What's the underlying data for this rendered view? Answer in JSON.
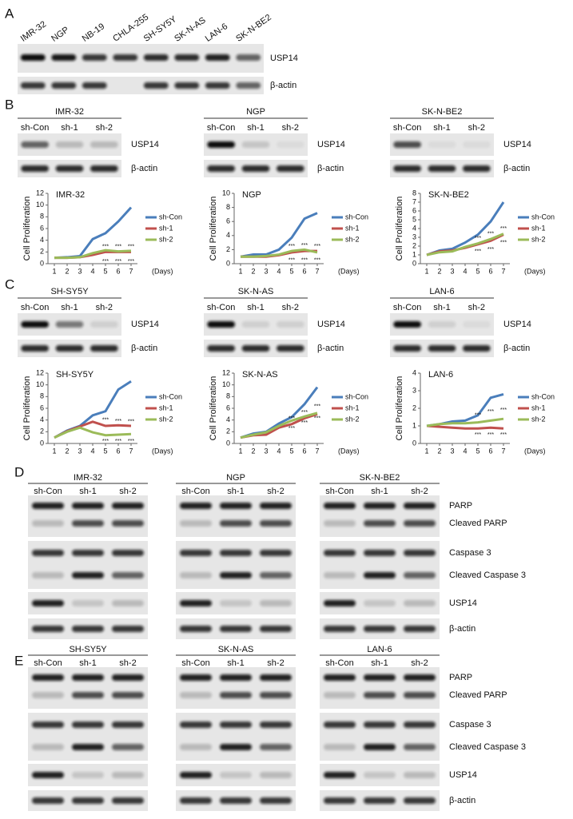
{
  "figure": {
    "panel_labels": [
      "A",
      "B",
      "C",
      "D",
      "E"
    ],
    "panel_a": {
      "lanes": [
        "IMR-32",
        "NGP",
        "NB-19",
        "CHLA-255",
        "SH-SY5Y",
        "SK-N-AS",
        "LAN-6",
        "SK-N-BE2"
      ],
      "rows": [
        "USP14",
        "β-actin"
      ]
    },
    "panel_b": {
      "blots": [
        {
          "title": "IMR-32",
          "lanes": [
            "sh-Con",
            "sh-1",
            "sh-2"
          ],
          "rows": [
            "USP14",
            "β-actin"
          ]
        },
        {
          "title": "NGP",
          "lanes": [
            "sh-Con",
            "sh-1",
            "sh-2"
          ],
          "rows": [
            "USP14",
            "β-actin"
          ]
        },
        {
          "title": "SK-N-BE2",
          "lanes": [
            "sh-Con",
            "sh-1",
            "sh-2"
          ],
          "rows": [
            "USP14",
            "β-actin"
          ]
        }
      ]
    },
    "panel_c": {
      "blots": [
        {
          "title": "SH-SY5Y",
          "lanes": [
            "sh-Con",
            "sh-1",
            "sh-2"
          ],
          "rows": [
            "USP14",
            "β-actin"
          ]
        },
        {
          "title": "SK-N-AS",
          "lanes": [
            "sh-Con",
            "sh-1",
            "sh-2"
          ],
          "rows": [
            "USP14",
            "β-actin"
          ]
        },
        {
          "title": "LAN-6",
          "lanes": [
            "sh-Con",
            "sh-1",
            "sh-2"
          ],
          "rows": [
            "USP14",
            "β-actin"
          ]
        }
      ]
    },
    "panel_d": {
      "blots": [
        {
          "title": "IMR-32",
          "lanes": [
            "sh-Con",
            "sh-1",
            "sh-2"
          ]
        },
        {
          "title": "NGP",
          "lanes": [
            "sh-Con",
            "sh-1",
            "sh-2"
          ]
        },
        {
          "title": "SK-N-BE2",
          "lanes": [
            "sh-Con",
            "sh-1",
            "sh-2"
          ]
        }
      ],
      "rows": [
        "PARP",
        "Cleaved PARP",
        "Caspase 3",
        "Cleaved Caspase 3",
        "USP14",
        "β-actin"
      ]
    },
    "panel_e": {
      "blots": [
        {
          "title": "SH-SY5Y",
          "lanes": [
            "sh-Con",
            "sh-1",
            "sh-2"
          ]
        },
        {
          "title": "SK-N-AS",
          "lanes": [
            "sh-Con",
            "sh-1",
            "sh-2"
          ]
        },
        {
          "title": "LAN-6",
          "lanes": [
            "sh-Con",
            "sh-1",
            "sh-2"
          ]
        }
      ],
      "rows": [
        "PARP",
        "Cleaved PARP",
        "Caspase 3",
        "Cleaved Caspase 3",
        "USP14",
        "β-actin"
      ]
    }
  },
  "chart_data": [
    {
      "type": "line",
      "title": "IMR-32",
      "ylabel": "Cell Proliferation",
      "xlabel": "(Days)",
      "x": [
        1,
        2,
        3,
        4,
        5,
        6,
        7
      ],
      "xlim": [
        0.5,
        7.5
      ],
      "ylim": [
        0,
        12
      ],
      "yticks": [
        0,
        2,
        4,
        6,
        8,
        10,
        12
      ],
      "series": [
        {
          "name": "sh-Con",
          "color": "#4a7ebb",
          "values": [
            1,
            1.1,
            1.3,
            4.2,
            5.2,
            7.2,
            9.6
          ]
        },
        {
          "name": "sh-1",
          "color": "#c0504d",
          "values": [
            1,
            1,
            1.1,
            1.5,
            2,
            2,
            2
          ]
        },
        {
          "name": "sh-2",
          "color": "#9bbb59",
          "values": [
            1,
            1,
            1.1,
            1.8,
            2.3,
            2.1,
            2.2
          ]
        }
      ],
      "annotations": [
        {
          "text": "***",
          "x": 5,
          "y": 2.9
        },
        {
          "text": "***",
          "x": 6,
          "y": 2.9
        },
        {
          "text": "***",
          "x": 7,
          "y": 2.9
        },
        {
          "text": "***",
          "x": 5,
          "y": 0.4
        },
        {
          "text": "***",
          "x": 6,
          "y": 0.4
        },
        {
          "text": "***",
          "x": 7,
          "y": 0.4
        }
      ]
    },
    {
      "type": "line",
      "title": "NGP",
      "ylabel": "Cell Proliferation",
      "xlabel": "(Days)",
      "x": [
        1,
        2,
        3,
        4,
        5,
        6,
        7
      ],
      "xlim": [
        0.5,
        7.5
      ],
      "ylim": [
        0,
        10
      ],
      "yticks": [
        0,
        2,
        4,
        6,
        8,
        10
      ],
      "series": [
        {
          "name": "sh-Con",
          "color": "#4a7ebb",
          "values": [
            1,
            1.3,
            1.3,
            2,
            3.7,
            6.4,
            7.2
          ]
        },
        {
          "name": "sh-1",
          "color": "#c0504d",
          "values": [
            1,
            1,
            1,
            1.2,
            1.6,
            1.8,
            1.8
          ]
        },
        {
          "name": "sh-2",
          "color": "#9bbb59",
          "values": [
            1,
            1,
            1.1,
            1.3,
            1.8,
            2,
            1.6
          ]
        }
      ],
      "annotations": [
        {
          "text": "***",
          "x": 5,
          "y": 2.5
        },
        {
          "text": "***",
          "x": 6,
          "y": 2.6
        },
        {
          "text": "***",
          "x": 7,
          "y": 2.5
        },
        {
          "text": "***",
          "x": 5,
          "y": 0.5
        },
        {
          "text": "***",
          "x": 6,
          "y": 0.5
        },
        {
          "text": "***",
          "x": 7,
          "y": 0.5
        }
      ]
    },
    {
      "type": "line",
      "title": "SK-N-BE2",
      "ylabel": "Cell Proliferation",
      "xlabel": "(Days)",
      "x": [
        1,
        2,
        3,
        4,
        5,
        6,
        7
      ],
      "xlim": [
        0.5,
        7.5
      ],
      "ylim": [
        0,
        8
      ],
      "yticks": [
        0,
        1,
        2,
        3,
        4,
        5,
        6,
        7,
        8
      ],
      "series": [
        {
          "name": "sh-Con",
          "color": "#4a7ebb",
          "values": [
            1,
            1.5,
            1.7,
            2.4,
            3.3,
            4.8,
            7
          ]
        },
        {
          "name": "sh-1",
          "color": "#c0504d",
          "values": [
            1,
            1.4,
            1.5,
            1.8,
            2.2,
            2.6,
            3.3
          ]
        },
        {
          "name": "sh-2",
          "color": "#9bbb59",
          "values": [
            1,
            1.3,
            1.4,
            1.9,
            2.3,
            2.8,
            3.4
          ]
        }
      ],
      "annotations": [
        {
          "text": "***",
          "x": 5,
          "y": 2.9
        },
        {
          "text": "***",
          "x": 6,
          "y": 3.4
        },
        {
          "text": "***",
          "x": 7,
          "y": 4
        },
        {
          "text": "***",
          "x": 5,
          "y": 1.4
        },
        {
          "text": "***",
          "x": 6,
          "y": 1.6
        },
        {
          "text": "***",
          "x": 7,
          "y": 2.4
        }
      ]
    },
    {
      "type": "line",
      "title": "SH-SY5Y",
      "ylabel": "Cell Proliferation",
      "xlabel": "(Days)",
      "x": [
        1,
        2,
        3,
        4,
        5,
        6,
        7
      ],
      "xlim": [
        0.5,
        7.5
      ],
      "ylim": [
        0,
        12
      ],
      "yticks": [
        0,
        2,
        4,
        6,
        8,
        10,
        12
      ],
      "series": [
        {
          "name": "sh-Con",
          "color": "#4a7ebb",
          "values": [
            1,
            2.2,
            3,
            4.8,
            5.5,
            9.2,
            10.6
          ]
        },
        {
          "name": "sh-1",
          "color": "#c0504d",
          "values": [
            1,
            2.1,
            2.9,
            3.7,
            3,
            3.1,
            3
          ]
        },
        {
          "name": "sh-2",
          "color": "#9bbb59",
          "values": [
            1,
            2,
            2.7,
            1.9,
            1.4,
            1.5,
            1.6
          ]
        }
      ],
      "annotations": [
        {
          "text": "***",
          "x": 5,
          "y": 4
        },
        {
          "text": "***",
          "x": 6,
          "y": 3.8
        },
        {
          "text": "***",
          "x": 7,
          "y": 3.7
        },
        {
          "text": "***",
          "x": 5,
          "y": 0.4
        },
        {
          "text": "***",
          "x": 6,
          "y": 0.4
        },
        {
          "text": "***",
          "x": 7,
          "y": 0.4
        }
      ]
    },
    {
      "type": "line",
      "title": "SK-N-AS",
      "ylabel": "Cell Proliferation",
      "xlabel": "(Days)",
      "x": [
        1,
        2,
        3,
        4,
        5,
        6,
        7
      ],
      "xlim": [
        0.5,
        7.5
      ],
      "ylim": [
        0,
        12
      ],
      "yticks": [
        0,
        2,
        4,
        6,
        8,
        10,
        12
      ],
      "series": [
        {
          "name": "sh-Con",
          "color": "#4a7ebb",
          "values": [
            1,
            1.7,
            2,
            3.4,
            4.5,
            6.7,
            9.6
          ]
        },
        {
          "name": "sh-1",
          "color": "#c0504d",
          "values": [
            1,
            1.4,
            1.5,
            2.7,
            3.3,
            4.3,
            5
          ]
        },
        {
          "name": "sh-2",
          "color": "#9bbb59",
          "values": [
            1,
            1.5,
            1.9,
            3,
            3.9,
            4.6,
            5.2
          ]
        }
      ],
      "annotations": [
        {
          "text": "***",
          "x": 5,
          "y": 4.3
        },
        {
          "text": "***",
          "x": 6,
          "y": 5.3
        },
        {
          "text": "***",
          "x": 7,
          "y": 6.3
        },
        {
          "text": "***",
          "x": 5,
          "y": 2.6
        },
        {
          "text": "***",
          "x": 6,
          "y": 3.5
        },
        {
          "text": "***",
          "x": 7,
          "y": 4.3
        }
      ]
    },
    {
      "type": "line",
      "title": "LAN-6",
      "ylabel": "Cell Proliferation",
      "xlabel": "(Days)",
      "x": [
        1,
        2,
        3,
        4,
        5,
        6,
        7
      ],
      "xlim": [
        0.5,
        7.5
      ],
      "ylim": [
        0,
        4
      ],
      "yticks": [
        0,
        1,
        2,
        3,
        4
      ],
      "series": [
        {
          "name": "sh-Con",
          "color": "#4a7ebb",
          "values": [
            1,
            1.1,
            1.25,
            1.3,
            1.6,
            2.6,
            2.8
          ]
        },
        {
          "name": "sh-1",
          "color": "#c0504d",
          "values": [
            1,
            0.95,
            0.9,
            0.85,
            0.85,
            0.9,
            0.85
          ]
        },
        {
          "name": "sh-2",
          "color": "#9bbb59",
          "values": [
            1,
            1.1,
            1.15,
            1.15,
            1.2,
            1.3,
            1.4
          ]
        }
      ],
      "annotations": [
        {
          "text": "***",
          "x": 5,
          "y": 1.6
        },
        {
          "text": "***",
          "x": 6,
          "y": 1.8
        },
        {
          "text": "***",
          "x": 7,
          "y": 1.9
        },
        {
          "text": "***",
          "x": 5,
          "y": 0.5
        },
        {
          "text": "***",
          "x": 6,
          "y": 0.5
        },
        {
          "text": "***",
          "x": 7,
          "y": 0.5
        }
      ]
    }
  ]
}
